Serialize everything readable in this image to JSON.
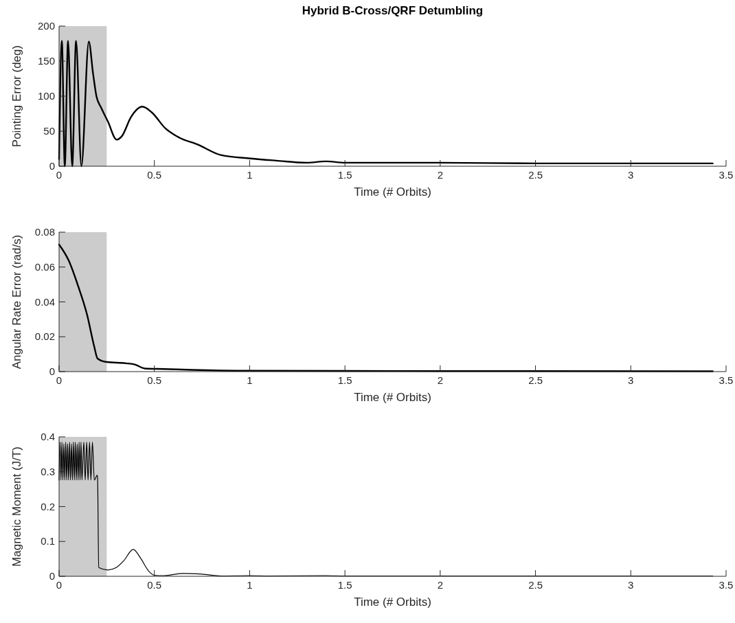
{
  "chart_data": [
    {
      "type": "line",
      "title": "Hybrid B-Cross/QRF Detumbling",
      "xlabel": "Time (# Orbits)",
      "ylabel": "Pointing Error (deg)",
      "xlim": [
        0,
        3.5
      ],
      "xticks": [
        0,
        0.5,
        1,
        1.5,
        2,
        2.5,
        3,
        3.5
      ],
      "ylim": [
        0,
        200
      ],
      "yticks": [
        0,
        50,
        100,
        150,
        200
      ],
      "grid": false,
      "bands": [
        {
          "axis": "x",
          "from": 0,
          "to": 0.25,
          "color": "#cccccc"
        }
      ],
      "series": [
        {
          "color": "#000000",
          "x": [
            0,
            0.0145,
            0.03,
            0.047,
            0.069,
            0.089,
            0.117,
            0.156,
            0.178,
            0.196,
            0.22,
            0.256,
            0.302,
            0.33,
            0.377,
            0.437,
            0.486,
            0.558,
            0.63,
            0.727,
            0.848,
            1.005,
            1.14,
            1.3,
            1.4,
            1.5,
            2,
            2.5,
            3,
            3.43
          ],
          "values": [
            10,
            179,
            0,
            179,
            0,
            179,
            0,
            178,
            133,
            100,
            84,
            64,
            38,
            43,
            70,
            85,
            77,
            54,
            41,
            31,
            16,
            11,
            8,
            5,
            7,
            5,
            5,
            4,
            4,
            4
          ]
        }
      ]
    },
    {
      "type": "line",
      "xlabel": "Time (# Orbits)",
      "ylabel": "Angular Rate Error (rad/s)",
      "xlim": [
        0,
        3.5
      ],
      "xticks": [
        0,
        0.5,
        1,
        1.5,
        2,
        2.5,
        3,
        3.5
      ],
      "ylim": [
        0,
        0.08
      ],
      "yticks": [
        0,
        0.02,
        0.04,
        0.06,
        0.08
      ],
      "grid": false,
      "bands": [
        {
          "axis": "x",
          "from": 0,
          "to": 0.25,
          "color": "#cccccc"
        }
      ],
      "series": [
        {
          "color": "#000000",
          "x": [
            0,
            0.051,
            0.099,
            0.147,
            0.184,
            0.202,
            0.25,
            0.35,
            0.4,
            0.45,
            0.55,
            0.7,
            1,
            2,
            3.43
          ],
          "values": [
            0.0729,
            0.0636,
            0.0494,
            0.0326,
            0.0146,
            0.0075,
            0.0055,
            0.0048,
            0.004,
            0.0018,
            0.0015,
            0.001,
            0.0005,
            0.0003,
            0.0002
          ]
        }
      ]
    },
    {
      "type": "line",
      "xlabel": "Time (# Orbits)",
      "ylabel": "Magnetic Moment (J/T)",
      "xlim": [
        0,
        3.5
      ],
      "xticks": [
        0,
        0.5,
        1,
        1.5,
        2,
        2.5,
        3,
        3.5
      ],
      "ylim": [
        0,
        0.4
      ],
      "yticks": [
        0,
        0.1,
        0.2,
        0.3,
        0.4
      ],
      "grid": false,
      "bands": [
        {
          "axis": "x",
          "from": 0,
          "to": 0.25,
          "color": "#cccccc"
        }
      ],
      "series": [
        {
          "color": "#000000",
          "x": [
            0,
            0.005,
            0.01,
            0.015,
            0.02,
            0.025,
            0.03,
            0.035,
            0.04,
            0.045,
            0.05,
            0.055,
            0.06,
            0.065,
            0.07,
            0.075,
            0.08,
            0.085,
            0.09,
            0.095,
            0.1,
            0.105,
            0.11,
            0.115,
            0.12,
            0.13,
            0.137,
            0.145,
            0.152,
            0.16,
            0.167,
            0.175,
            0.185,
            0.2,
            0.202,
            0.208,
            0.256,
            0.3,
            0.34,
            0.389,
            0.43,
            0.47,
            0.5,
            0.55,
            0.65,
            0.75,
            0.85,
            1,
            1.1,
            1.4,
            1.5,
            2,
            3.43
          ],
          "values": [
            0.276,
            0.385,
            0.276,
            0.385,
            0.276,
            0.38,
            0.276,
            0.385,
            0.276,
            0.38,
            0.276,
            0.385,
            0.276,
            0.38,
            0.276,
            0.385,
            0.276,
            0.385,
            0.276,
            0.38,
            0.276,
            0.385,
            0.276,
            0.385,
            0.276,
            0.385,
            0.276,
            0.385,
            0.276,
            0.385,
            0.276,
            0.385,
            0.276,
            0.29,
            0.284,
            0.025,
            0.018,
            0.025,
            0.045,
            0.077,
            0.05,
            0.015,
            0.003,
            0.002,
            0.008,
            0.006,
            0.001,
            0.002,
            0.001,
            0.002,
            0.001,
            0.001,
            0.001
          ]
        }
      ]
    }
  ]
}
